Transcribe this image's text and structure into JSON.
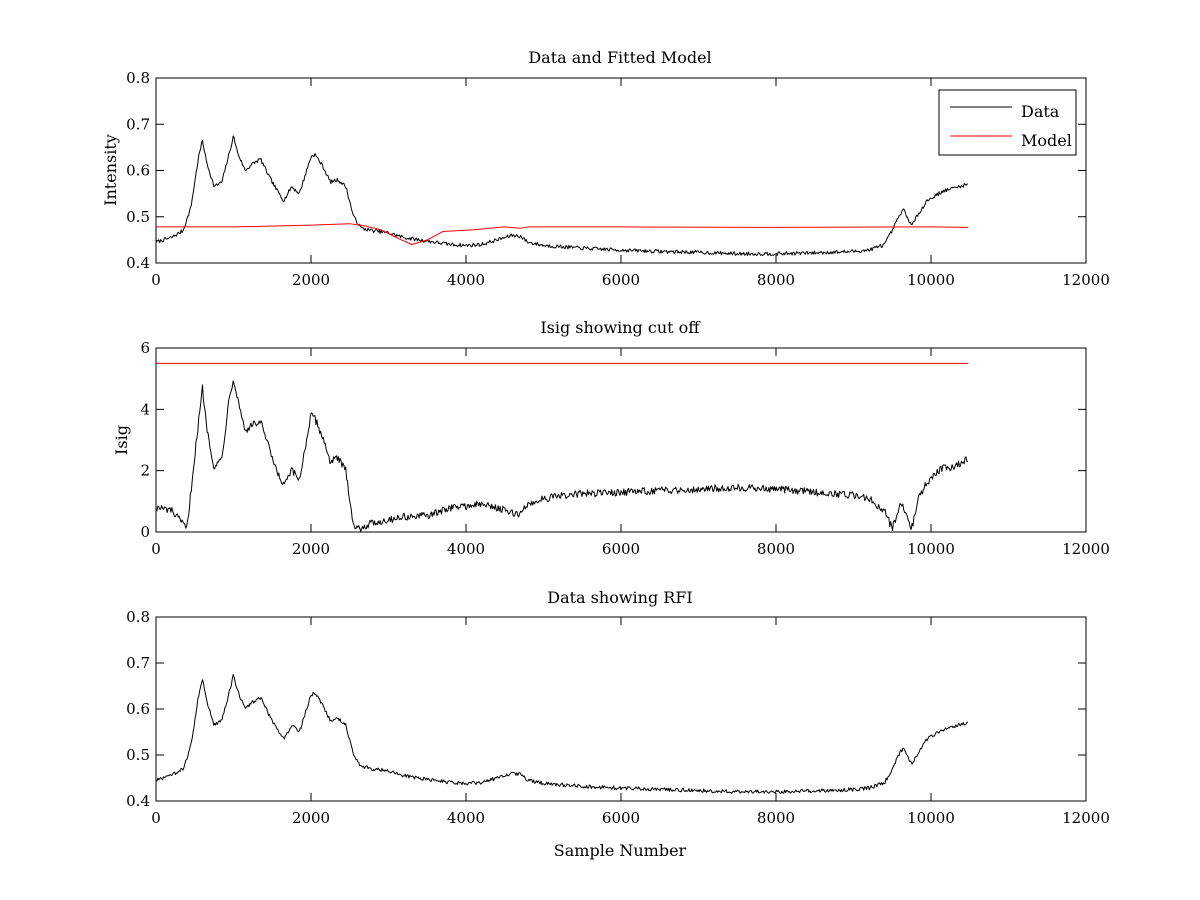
{
  "chart_data": [
    {
      "type": "line",
      "title": "Data and Fitted Model",
      "xlabel": "",
      "ylabel": "Intensity",
      "xlim": [
        0,
        12000
      ],
      "ylim": [
        0.4,
        0.8
      ],
      "xticks": [
        0,
        2000,
        4000,
        6000,
        8000,
        10000,
        12000
      ],
      "yticks": [
        0.4,
        0.5,
        0.6,
        0.7,
        0.8
      ],
      "legend": {
        "position": "top-right",
        "entries": [
          "Data",
          "Model"
        ]
      },
      "grid": false,
      "series": [
        {
          "name": "Data",
          "color": "#000000",
          "noise": 0.004,
          "x": [
            0,
            200,
            350,
            450,
            550,
            600,
            650,
            750,
            850,
            950,
            1000,
            1050,
            1150,
            1250,
            1350,
            1450,
            1550,
            1650,
            1750,
            1850,
            2000,
            2050,
            2150,
            2250,
            2350,
            2450,
            2550,
            2650,
            2800,
            3000,
            3200,
            3400,
            3600,
            3800,
            4000,
            4200,
            4400,
            4600,
            4700,
            4800,
            5000,
            5500,
            6000,
            6500,
            7000,
            7500,
            8000,
            8500,
            9000,
            9200,
            9400,
            9500,
            9600,
            9650,
            9750,
            9850,
            9950,
            10050,
            10150,
            10250,
            10350,
            10480
          ],
          "y": [
            0.445,
            0.455,
            0.47,
            0.52,
            0.63,
            0.665,
            0.62,
            0.565,
            0.575,
            0.64,
            0.675,
            0.64,
            0.6,
            0.615,
            0.625,
            0.59,
            0.56,
            0.535,
            0.565,
            0.55,
            0.63,
            0.635,
            0.61,
            0.575,
            0.58,
            0.565,
            0.5,
            0.475,
            0.47,
            0.465,
            0.455,
            0.45,
            0.445,
            0.44,
            0.438,
            0.44,
            0.45,
            0.46,
            0.458,
            0.445,
            0.438,
            0.432,
            0.428,
            0.425,
            0.423,
            0.42,
            0.42,
            0.422,
            0.425,
            0.428,
            0.44,
            0.47,
            0.505,
            0.515,
            0.48,
            0.51,
            0.535,
            0.545,
            0.555,
            0.56,
            0.565,
            0.57
          ]
        },
        {
          "name": "Model",
          "color": "#ff0000",
          "noise": 0.0,
          "x": [
            0,
            1000,
            2000,
            2500,
            2700,
            2900,
            3100,
            3300,
            3500,
            3700,
            3900,
            4100,
            4300,
            4500,
            4700,
            4800,
            5000,
            6000,
            8000,
            10000,
            10480
          ],
          "y": [
            0.478,
            0.478,
            0.482,
            0.485,
            0.48,
            0.472,
            0.455,
            0.44,
            0.45,
            0.468,
            0.47,
            0.472,
            0.475,
            0.478,
            0.475,
            0.478,
            0.478,
            0.478,
            0.477,
            0.478,
            0.477
          ]
        }
      ]
    },
    {
      "type": "line",
      "title": "Isig showing cut off",
      "xlabel": "",
      "ylabel": "Isig",
      "xlim": [
        0,
        12000
      ],
      "ylim": [
        0,
        6
      ],
      "xticks": [
        0,
        2000,
        4000,
        6000,
        8000,
        10000,
        12000
      ],
      "yticks": [
        0,
        2,
        4,
        6
      ],
      "grid": false,
      "series": [
        {
          "color": "#000000",
          "noise": 0.12,
          "x": [
            0,
            200,
            300,
            400,
            500,
            600,
            650,
            750,
            850,
            950,
            1000,
            1050,
            1150,
            1250,
            1350,
            1450,
            1550,
            1650,
            1750,
            1850,
            2000,
            2050,
            2150,
            2250,
            2350,
            2450,
            2550,
            2600,
            2800,
            3000,
            3200,
            3400,
            3600,
            3800,
            4000,
            4200,
            4400,
            4600,
            4700,
            4800,
            5000,
            5500,
            6000,
            6500,
            7000,
            7500,
            8000,
            8500,
            9000,
            9200,
            9400,
            9500,
            9600,
            9650,
            9750,
            9850,
            9950,
            10050,
            10150,
            10250,
            10350,
            10480
          ],
          "y": [
            0.8,
            0.7,
            0.4,
            0.1,
            2.5,
            4.7,
            3.5,
            2.1,
            2.4,
            4.5,
            5.0,
            4.4,
            3.3,
            3.5,
            3.6,
            2.8,
            2.0,
            1.5,
            2.0,
            1.7,
            3.8,
            3.7,
            3.1,
            2.3,
            2.4,
            2.0,
            0.2,
            0.1,
            0.3,
            0.4,
            0.5,
            0.5,
            0.6,
            0.8,
            0.85,
            0.9,
            0.8,
            0.6,
            0.6,
            0.9,
            1.1,
            1.25,
            1.3,
            1.35,
            1.4,
            1.45,
            1.4,
            1.3,
            1.2,
            1.1,
            0.7,
            0.1,
            0.9,
            0.8,
            0.1,
            1.2,
            1.6,
            1.9,
            2.1,
            2.1,
            2.2,
            2.4
          ]
        },
        {
          "color": "#ff0000",
          "noise": 0.0,
          "x": [
            0,
            10480
          ],
          "y": [
            5.5,
            5.5
          ]
        }
      ]
    },
    {
      "type": "line",
      "title": "Data showing RFI",
      "xlabel": "Sample Number",
      "ylabel": "",
      "xlim": [
        0,
        12000
      ],
      "ylim": [
        0.4,
        0.8
      ],
      "xticks": [
        0,
        2000,
        4000,
        6000,
        8000,
        10000,
        12000
      ],
      "yticks": [
        0.4,
        0.5,
        0.6,
        0.7,
        0.8
      ],
      "grid": false,
      "series": [
        {
          "color": "#000000",
          "noise": 0.004,
          "x": [
            0,
            200,
            350,
            450,
            550,
            600,
            650,
            750,
            850,
            950,
            1000,
            1050,
            1150,
            1250,
            1350,
            1450,
            1550,
            1650,
            1750,
            1850,
            2000,
            2050,
            2150,
            2250,
            2350,
            2450,
            2550,
            2650,
            2800,
            3000,
            3200,
            3400,
            3600,
            3800,
            4000,
            4200,
            4400,
            4600,
            4700,
            4800,
            5000,
            5500,
            6000,
            6500,
            7000,
            7500,
            8000,
            8500,
            9000,
            9200,
            9400,
            9500,
            9600,
            9650,
            9750,
            9850,
            9950,
            10050,
            10150,
            10250,
            10350,
            10480
          ],
          "y": [
            0.445,
            0.455,
            0.47,
            0.52,
            0.63,
            0.665,
            0.62,
            0.565,
            0.575,
            0.64,
            0.675,
            0.64,
            0.6,
            0.615,
            0.625,
            0.59,
            0.56,
            0.535,
            0.565,
            0.55,
            0.63,
            0.635,
            0.61,
            0.575,
            0.58,
            0.565,
            0.5,
            0.475,
            0.47,
            0.465,
            0.455,
            0.45,
            0.445,
            0.44,
            0.438,
            0.44,
            0.45,
            0.46,
            0.458,
            0.445,
            0.438,
            0.432,
            0.428,
            0.425,
            0.423,
            0.42,
            0.42,
            0.422,
            0.425,
            0.428,
            0.44,
            0.47,
            0.505,
            0.515,
            0.48,
            0.51,
            0.535,
            0.545,
            0.555,
            0.56,
            0.565,
            0.57
          ]
        }
      ]
    }
  ]
}
